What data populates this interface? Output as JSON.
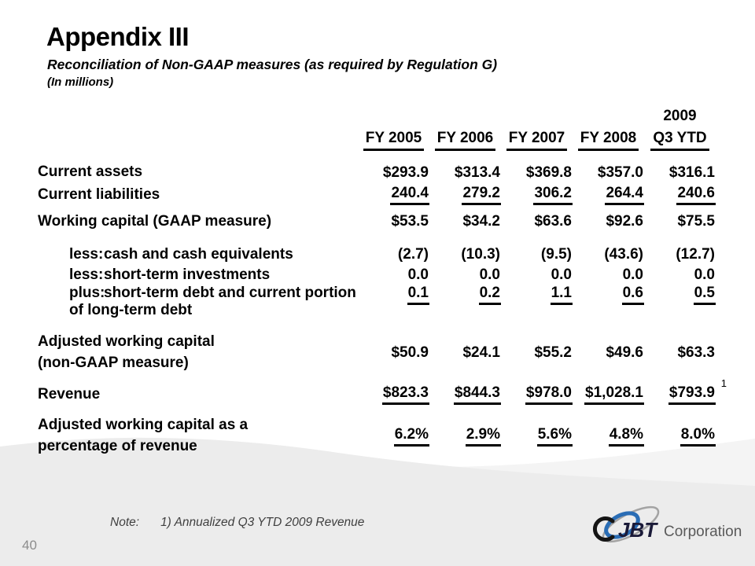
{
  "slide": {
    "title": "Appendix III",
    "subtitle": "Reconciliation of Non-GAAP measures (as required by Regulation G)",
    "units_note": "(In millions)",
    "page_number": "40"
  },
  "table": {
    "year_header": "2009",
    "columns": [
      "FY 2005",
      "FY 2006",
      "FY 2007",
      "FY 2008",
      "Q3 YTD"
    ],
    "rows": [
      {
        "label": "Current assets",
        "values": [
          "$293.9",
          "$313.4",
          "$369.8",
          "$357.0",
          "$316.1"
        ],
        "underline": false
      },
      {
        "label": "Current liabilities",
        "values": [
          "240.4",
          "279.2",
          "306.2",
          "264.4",
          "240.6"
        ],
        "underline": true
      },
      {
        "label": "Working capital (GAAP measure)",
        "values": [
          "$53.5",
          "$34.2",
          "$63.6",
          "$92.6",
          "$75.5"
        ],
        "underline": false
      },
      {
        "prefix": "less:",
        "label": "cash and cash equivalents",
        "values": [
          "(2.7)",
          "(10.3)",
          "(9.5)",
          "(43.6)",
          "(12.7)"
        ],
        "underline": false
      },
      {
        "prefix": "less:",
        "label": "short-term investments",
        "values": [
          "0.0",
          "0.0",
          "0.0",
          "0.0",
          "0.0"
        ],
        "underline": false
      },
      {
        "prefix": "plus:",
        "label": "short-term debt and current portion\nof long-term debt",
        "values": [
          "0.1",
          "0.2",
          "1.1",
          "0.6",
          "0.5"
        ],
        "underline": true
      },
      {
        "label": "Adjusted working capital\n(non-GAAP measure)",
        "values": [
          "$50.9",
          "$24.1",
          "$55.2",
          "$49.6",
          "$63.3"
        ],
        "underline": false
      },
      {
        "label": "Revenue",
        "values": [
          "$823.3",
          "$844.3",
          "$978.0",
          "$1,028.1",
          "$793.9"
        ],
        "underline": true,
        "footnote": "1"
      },
      {
        "label": "Adjusted working capital as a\npercentage of revenue",
        "values": [
          "6.2%",
          "2.9%",
          "5.6%",
          "4.8%",
          "8.0%"
        ],
        "underline": true
      }
    ]
  },
  "footnotes": {
    "note_label": "Note:",
    "note_text": "1) Annualized Q3 YTD 2009 Revenue"
  },
  "logo": {
    "brand": "JBT",
    "suffix": "Corporation"
  },
  "colors": {
    "swoosh": "#ececec",
    "swoosh_light": "#f4f4f4",
    "logo_blue": "#2a6db5",
    "logo_gray": "#a3a3a3",
    "logo_dark": "#1a1a38",
    "logo_text_gray": "#5a5a5a"
  }
}
